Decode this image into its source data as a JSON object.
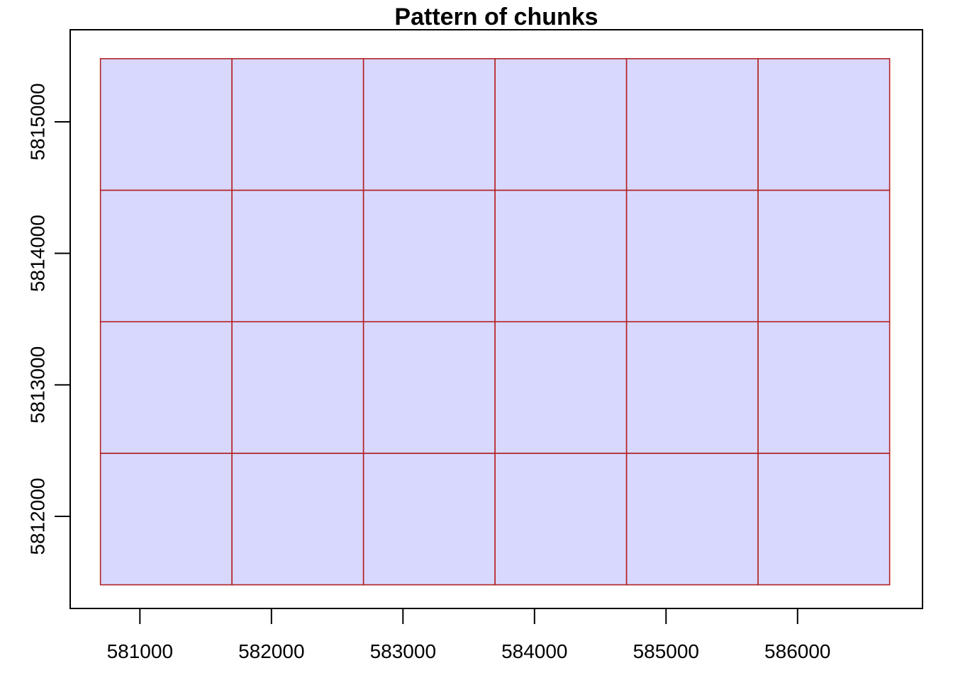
{
  "chart_data": {
    "type": "grid",
    "title": "Pattern of chunks",
    "xlabel": "",
    "ylabel": "",
    "xlim": [
      580470,
      586950
    ],
    "ylim": [
      5811300,
      5815700
    ],
    "x_ticks": [
      581000,
      582000,
      583000,
      584000,
      585000,
      586000
    ],
    "y_ticks": [
      5812000,
      5813000,
      5814000,
      5815000
    ],
    "x_tick_labels": [
      "581000",
      "582000",
      "583000",
      "584000",
      "585000",
      "586000"
    ],
    "y_tick_labels": [
      "5812000",
      "5813000",
      "5814000",
      "5815000"
    ],
    "chunk_x_edges": [
      580700,
      581700,
      582700,
      583700,
      584700,
      585700,
      586700
    ],
    "chunk_y_edges": [
      5811480,
      5812480,
      5813480,
      5814480,
      5815480
    ],
    "chunk_fill": "#d8d8ff",
    "chunk_border": "#b22222",
    "grid": false,
    "legend": "none"
  }
}
